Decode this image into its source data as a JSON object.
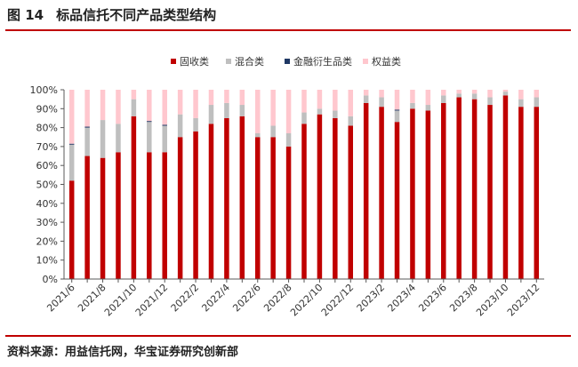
{
  "figure": {
    "number": "图 14",
    "title": "标品信托不同产品类型结构",
    "source": "资料来源：用益信托网，华宝证券研究创新部"
  },
  "chart_data": {
    "type": "bar",
    "stacked": true,
    "legend_position": "top-center",
    "grid": false,
    "ylim": [
      0,
      100
    ],
    "yticks": [
      "0%",
      "10%",
      "20%",
      "30%",
      "40%",
      "50%",
      "60%",
      "70%",
      "80%",
      "90%",
      "100%"
    ],
    "categories": [
      "2021/6",
      "2021/7",
      "2021/8",
      "2021/9",
      "2021/10",
      "2021/11",
      "2021/12",
      "2022/1",
      "2022/2",
      "2022/3",
      "2022/4",
      "2022/5",
      "2022/6",
      "2022/7",
      "2022/8",
      "2022/9",
      "2022/10",
      "2022/11",
      "2022/12",
      "2023/1",
      "2023/2",
      "2023/3",
      "2023/4",
      "2023/5",
      "2023/6",
      "2023/7",
      "2023/8",
      "2023/9",
      "2023/10",
      "2023/11",
      "2023/12"
    ],
    "xtick_labels": [
      "2021/6",
      "2021/8",
      "2021/10",
      "2021/12",
      "2022/2",
      "2022/4",
      "2022/6",
      "2022/8",
      "2022/10",
      "2022/12",
      "2023/2",
      "2023/4",
      "2023/6",
      "2023/8",
      "2023/10",
      "2023/12"
    ],
    "series": [
      {
        "name": "固收类",
        "color": "#c00000",
        "values": [
          52,
          65,
          64,
          67,
          86,
          67,
          67,
          75,
          78,
          82,
          85,
          86,
          75,
          75,
          70,
          82,
          87,
          85,
          81,
          93,
          91,
          83,
          90,
          89,
          93,
          96,
          95,
          92,
          97,
          91,
          91
        ]
      },
      {
        "name": "混合类",
        "color": "#bfbfbf",
        "values": [
          19,
          15,
          20,
          15,
          9,
          16,
          14,
          12,
          7,
          10,
          8,
          6,
          2,
          6,
          7,
          6,
          3,
          4,
          5,
          4,
          5,
          6,
          3,
          3,
          4,
          2,
          3,
          4,
          2,
          4,
          5
        ]
      },
      {
        "name": "金融衍生品类",
        "color": "#1f3864",
        "values": [
          0.5,
          0.5,
          0,
          0,
          0,
          0.5,
          0.5,
          0,
          0,
          0,
          0,
          0,
          0,
          0,
          0,
          0,
          0,
          0,
          0,
          0,
          0,
          0.5,
          0,
          0,
          0,
          0,
          0,
          0,
          0,
          0,
          0
        ]
      },
      {
        "name": "权益类",
        "color": "#ffc7ce",
        "values": [
          28.5,
          19.5,
          16,
          18,
          5,
          16.5,
          18.5,
          13,
          15,
          8,
          7,
          8,
          23,
          19,
          23,
          12,
          10,
          11,
          14,
          3,
          4,
          10.5,
          7,
          8,
          3,
          2,
          2,
          4,
          1,
          5,
          4
        ]
      }
    ]
  }
}
